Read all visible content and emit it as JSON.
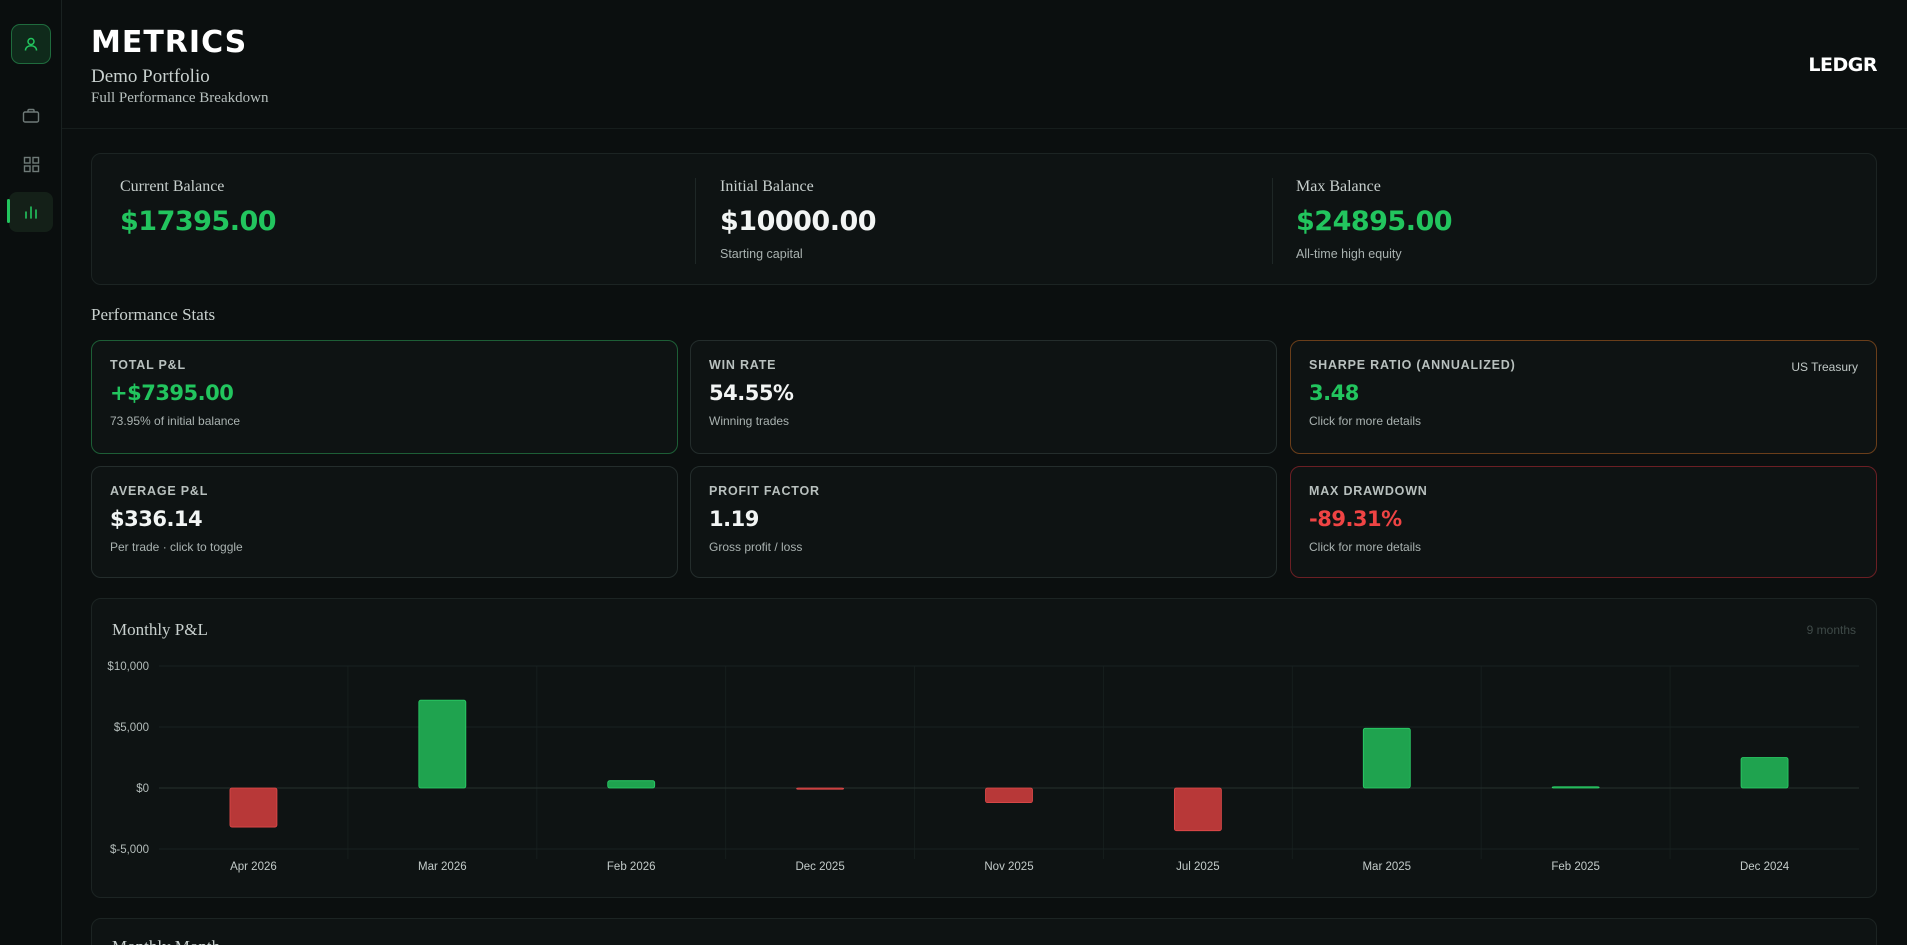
{
  "header": {
    "title": "METRICS",
    "portfolio_name": "Demo Portfolio",
    "subtitle": "Full Performance Breakdown",
    "brand": "LEDGR"
  },
  "sidebar": {
    "items": [
      {
        "icon": "user-icon"
      },
      {
        "icon": "briefcase-icon"
      },
      {
        "icon": "grid-icon"
      },
      {
        "icon": "bar-chart-icon",
        "active": true
      }
    ]
  },
  "balances": {
    "current": {
      "label": "Current Balance",
      "value": "$17395.00",
      "sub": ""
    },
    "initial": {
      "label": "Initial Balance",
      "value": "$10000.00",
      "sub": "Starting capital"
    },
    "max": {
      "label": "Max Balance",
      "value": "$24895.00",
      "sub": "All-time high equity"
    }
  },
  "performance": {
    "title": "Performance Stats",
    "total_pl": {
      "label": "TOTAL P&L",
      "value": "+$7395.00",
      "sub": "73.95% of initial balance"
    },
    "win_rate": {
      "label": "WIN RATE",
      "value": "54.55%",
      "sub": "Winning trades"
    },
    "sharpe": {
      "label": "SHARPE RATIO (ANNUALIZED)",
      "tag": "US Treasury",
      "value": "3.48",
      "sub": "Click for more details"
    },
    "avg_pl": {
      "label": "AVERAGE P&L",
      "value": "$336.14",
      "sub": "Per trade · click to toggle"
    },
    "profit_factor": {
      "label": "PROFIT FACTOR",
      "value": "1.19",
      "sub": "Gross profit / loss"
    },
    "max_drawdown": {
      "label": "MAX DRAWDOWN",
      "value": "-89.31%",
      "sub": "Click for more details"
    }
  },
  "monthly_chart": {
    "title": "Monthly P&L",
    "badge": "9 months"
  },
  "next_section": {
    "title": "Monthly Month"
  },
  "colors": {
    "accent": "#22c55e",
    "positive_bar": "#1fa34f",
    "negative_bar": "#b83838",
    "negative_text": "#ef4444"
  },
  "chart_data": {
    "type": "bar",
    "categories": [
      "Apr 2026",
      "Mar 2026",
      "Feb 2026",
      "Dec 2025",
      "Nov 2025",
      "Jul 2025",
      "Mar 2025",
      "Feb 2025",
      "Dec 2024"
    ],
    "values": [
      -3200,
      7200,
      600,
      -100,
      -1200,
      -3500,
      4900,
      100,
      2500
    ],
    "ylim": [
      -5000,
      10000
    ],
    "yticks": [
      10000,
      5000,
      0,
      -5000
    ],
    "ytick_labels": [
      "$10,000",
      "$5,000",
      "$0",
      "$-5,000"
    ],
    "title": "Monthly P&L",
    "grid": true
  }
}
